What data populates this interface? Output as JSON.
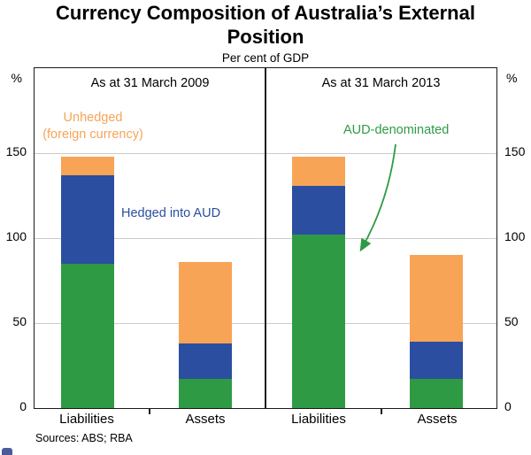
{
  "header": {
    "title": "Currency Composition of Australia’s External Position",
    "subtitle": "Per cent of GDP"
  },
  "footer": {
    "sources": "Sources: ABS; RBA"
  },
  "annotations": {
    "unhedged_line1": "Unhedged",
    "unhedged_line2": "(foreign currency)",
    "hedged": "Hedged into AUD",
    "aud": "AUD-denominated"
  },
  "chart_data": {
    "type": "bar",
    "stacked": true,
    "title": "Currency Composition of Australia’s External Position",
    "subtitle": "Per cent of GDP",
    "unit": "%",
    "ylim": [
      0,
      200
    ],
    "yticks": [
      0,
      50,
      100,
      150
    ],
    "grid": true,
    "panels": [
      {
        "title": "As at 31 March 2009",
        "categories": [
          "Liabilities",
          "Assets"
        ],
        "series": [
          {
            "name": "AUD-denominated",
            "values": [
              85,
              17
            ]
          },
          {
            "name": "Hedged into AUD",
            "values": [
              52,
              21
            ]
          },
          {
            "name": "Unhedged (foreign currency)",
            "values": [
              11,
              48
            ]
          }
        ]
      },
      {
        "title": "As at 31 March 2013",
        "categories": [
          "Liabilities",
          "Assets"
        ],
        "series": [
          {
            "name": "AUD-denominated",
            "values": [
              102,
              17
            ]
          },
          {
            "name": "Hedged into AUD",
            "values": [
              29,
              22
            ]
          },
          {
            "name": "Unhedged (foreign currency)",
            "values": [
              17,
              51
            ]
          }
        ]
      }
    ],
    "colors": {
      "AUD-denominated": "#2E9B44",
      "Hedged into AUD": "#2B4EA1",
      "Unhedged (foreign currency)": "#F7A456"
    }
  }
}
